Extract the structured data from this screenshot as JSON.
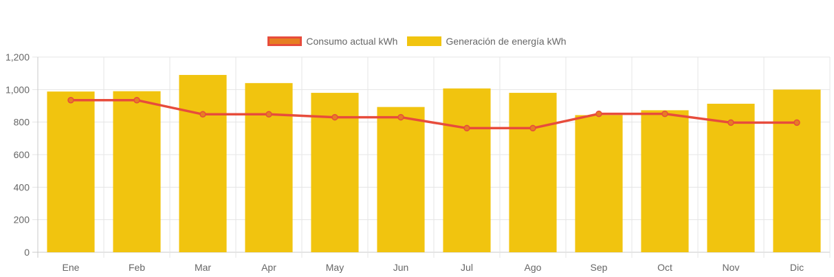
{
  "chart_data": {
    "type": "bar",
    "title": "",
    "xlabel": "",
    "ylabel": "",
    "categories": [
      "Ene",
      "Feb",
      "Mar",
      "Apr",
      "May",
      "Jun",
      "Jul",
      "Ago",
      "Sep",
      "Oct",
      "Nov",
      "Dic"
    ],
    "ylim": [
      0,
      1200
    ],
    "yticks": [
      "0",
      "200",
      "400",
      "600",
      "800",
      "1,000",
      "1,200"
    ],
    "ytick_values": [
      0,
      200,
      400,
      600,
      800,
      1000,
      1200
    ],
    "grid": true,
    "legend_position": "top-center",
    "series": [
      {
        "name": "Consumo actual kWh",
        "type": "line",
        "color": "#e74c3c",
        "fill": "#e67e22",
        "values": [
          935,
          935,
          848,
          848,
          830,
          830,
          763,
          763,
          851,
          851,
          797,
          797
        ]
      },
      {
        "name": "Generación de energía kWh",
        "type": "bar",
        "color": "#f1c40f",
        "values": [
          988,
          990,
          1090,
          1040,
          980,
          893,
          1007,
          980,
          843,
          873,
          913,
          1000
        ]
      }
    ]
  }
}
